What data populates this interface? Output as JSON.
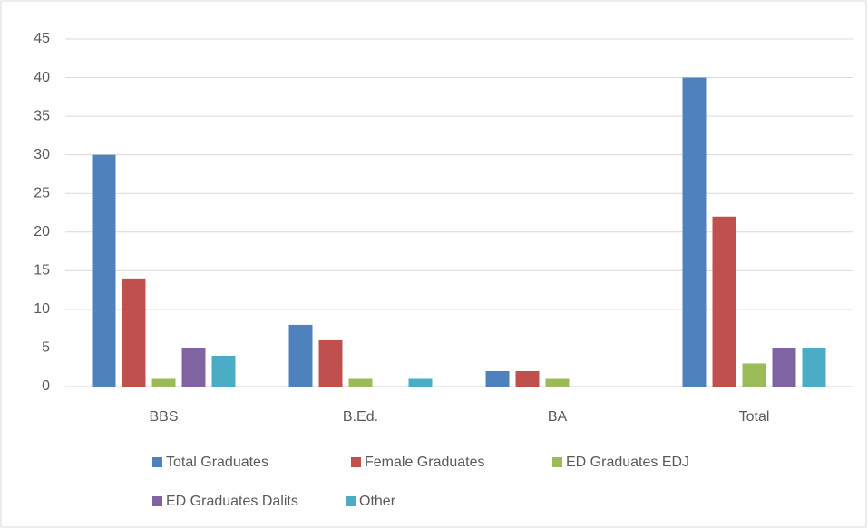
{
  "chart_data": {
    "type": "bar",
    "categories": [
      "BBS",
      "B.Ed.",
      "BA",
      "Total"
    ],
    "series": [
      {
        "name": "Total Graduates",
        "color": "#4f81bd",
        "values": [
          30,
          8,
          2,
          40
        ]
      },
      {
        "name": "Female Graduates",
        "color": "#c0504d",
        "values": [
          14,
          6,
          2,
          22
        ]
      },
      {
        "name": "ED Graduates EDJ",
        "color": "#9bbb59",
        "values": [
          1,
          1,
          1,
          3
        ]
      },
      {
        "name": "ED Graduates Dalits",
        "color": "#8064a2",
        "values": [
          5,
          0,
          0,
          5
        ]
      },
      {
        "name": "Other",
        "color": "#4bacc6",
        "values": [
          4,
          1,
          0,
          5
        ]
      }
    ],
    "ylim": [
      0,
      45
    ],
    "yticks": [
      0,
      5,
      10,
      15,
      20,
      25,
      30,
      35,
      40,
      45
    ],
    "grid": true,
    "legend": "bottom"
  }
}
